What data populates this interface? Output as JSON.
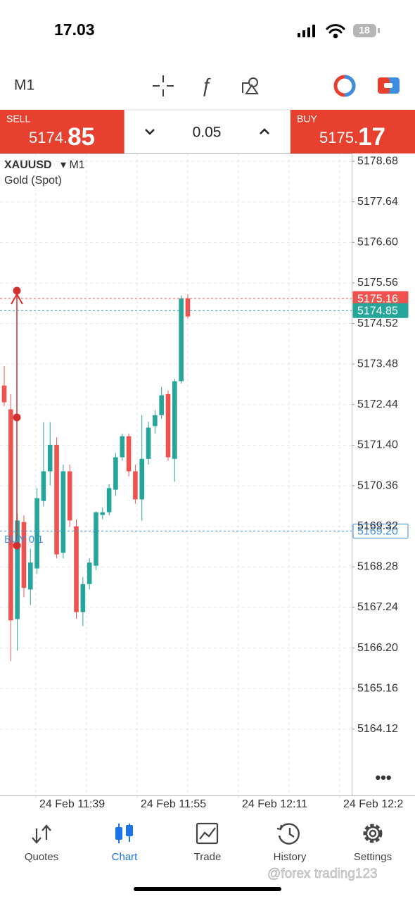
{
  "status_bar": {
    "time": "17.03",
    "battery": "18"
  },
  "toolbar": {
    "timeframe": "M1"
  },
  "trade_bar": {
    "sell": {
      "label": "SELL",
      "price_main": "5174.",
      "price_big": "85"
    },
    "volume": "0.05",
    "buy": {
      "label": "BUY",
      "price_main": "5175.",
      "price_big": "17"
    }
  },
  "chart_data": {
    "type": "candlestick",
    "symbol": "XAUUSD",
    "timeframe": "▾ M1",
    "description": "Gold (Spot)",
    "ylim": [
      5162.42,
      5178.88
    ],
    "yticks": [
      5178.68,
      5177.64,
      {
        "value": 5176.6,
        "label": "5176.60"
      },
      5175.56,
      5174.52,
      5173.48,
      5172.44,
      {
        "value": 5171.4,
        "label": "5171.40"
      },
      5170.36,
      5169.32,
      5168.28,
      5167.24,
      {
        "value": 5166.2,
        "label": "5166.20"
      },
      5165.16,
      5164.12
    ],
    "grid": true,
    "up_color": "#26a69a",
    "down_color": "#ef5350",
    "x_labels": [
      "24 Feb 11:39",
      "24 Feb 11:55",
      "24 Feb 12:11",
      "24 Feb 12:2"
    ],
    "candles": [
      {
        "open": 5172.93,
        "high": 5173.43,
        "low": 5172.4,
        "close": 5172.5
      },
      {
        "open": 5172.32,
        "high": 5172.71,
        "low": 5165.86,
        "close": 5166.91
      },
      {
        "open": 5166.94,
        "high": 5169.65,
        "low": 5166.13,
        "close": 5169.47
      },
      {
        "open": 5169.43,
        "high": 5169.6,
        "low": 5167.5,
        "close": 5167.74
      },
      {
        "open": 5167.7,
        "high": 5168.75,
        "low": 5167.3,
        "close": 5168.39
      },
      {
        "open": 5168.24,
        "high": 5170.3,
        "low": 5168.1,
        "close": 5170.04
      },
      {
        "open": 5169.97,
        "high": 5171.99,
        "low": 5169.83,
        "close": 5170.73
      },
      {
        "open": 5170.73,
        "high": 5171.99,
        "low": 5170.37,
        "close": 5171.41
      },
      {
        "open": 5171.41,
        "high": 5171.6,
        "low": 5168.5,
        "close": 5168.6
      },
      {
        "open": 5168.64,
        "high": 5170.9,
        "low": 5168.5,
        "close": 5170.73
      },
      {
        "open": 5170.73,
        "high": 5170.9,
        "low": 5169.3,
        "close": 5169.47
      },
      {
        "open": 5169.32,
        "high": 5169.5,
        "low": 5166.95,
        "close": 5167.12
      },
      {
        "open": 5167.12,
        "high": 5168.02,
        "low": 5166.76,
        "close": 5167.84
      },
      {
        "open": 5167.84,
        "high": 5168.5,
        "low": 5167.7,
        "close": 5168.39
      },
      {
        "open": 5168.31,
        "high": 5169.7,
        "low": 5168.2,
        "close": 5169.68
      },
      {
        "open": 5169.61,
        "high": 5169.8,
        "low": 5169.5,
        "close": 5169.68
      },
      {
        "open": 5169.68,
        "high": 5170.4,
        "low": 5169.6,
        "close": 5170.3
      },
      {
        "open": 5170.26,
        "high": 5171.2,
        "low": 5170.1,
        "close": 5171.09
      },
      {
        "open": 5171.09,
        "high": 5171.7,
        "low": 5171.0,
        "close": 5171.63
      },
      {
        "open": 5171.63,
        "high": 5171.7,
        "low": 5170.6,
        "close": 5170.73
      },
      {
        "open": 5170.73,
        "high": 5170.9,
        "low": 5169.9,
        "close": 5170.01
      },
      {
        "open": 5170.01,
        "high": 5172.17,
        "low": 5169.47,
        "close": 5171.05
      },
      {
        "open": 5171.05,
        "high": 5172.0,
        "low": 5170.9,
        "close": 5171.85
      },
      {
        "open": 5171.89,
        "high": 5172.3,
        "low": 5171.7,
        "close": 5172.17
      },
      {
        "open": 5172.17,
        "high": 5172.89,
        "low": 5172.08,
        "close": 5172.68
      },
      {
        "open": 5172.71,
        "high": 5172.8,
        "low": 5171.0,
        "close": 5171.09
      },
      {
        "open": 5171.05,
        "high": 5173.1,
        "low": 5170.46,
        "close": 5173.04
      },
      {
        "open": 5173.04,
        "high": 5175.24,
        "low": 5172.98,
        "close": 5175.16
      },
      {
        "open": 5175.16,
        "high": 5175.27,
        "low": 5174.66,
        "close": 5174.7
      }
    ],
    "price_lines": [
      {
        "value": 5175.16,
        "label": "5175.16",
        "color": "#ef5350",
        "style": "filled"
      },
      {
        "value": 5174.85,
        "label": "5174.85",
        "color": "#26a69a",
        "style": "filled"
      },
      {
        "value": 5169.2,
        "label": "5169.20",
        "color": "#3d8ee0",
        "style": "outline"
      }
    ],
    "position_label": "BUY 0.1"
  },
  "nav": {
    "items": [
      "Quotes",
      "Chart",
      "Trade",
      "History",
      "Settings"
    ],
    "active": 1
  },
  "watermark": "@forex trading123"
}
